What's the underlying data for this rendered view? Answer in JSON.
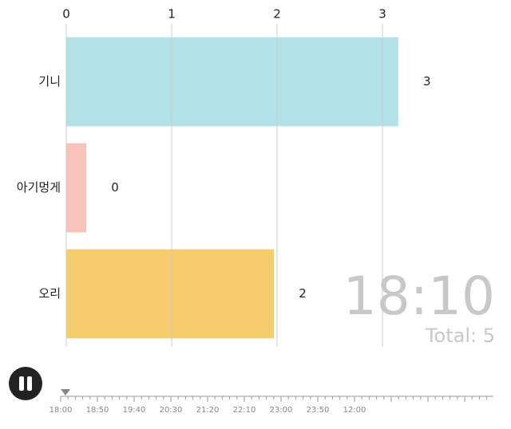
{
  "chart_data": {
    "type": "bar",
    "orientation": "horizontal",
    "categories": [
      "기니",
      "아기멍게",
      "오리"
    ],
    "values": [
      3.15,
      0.19,
      1.97
    ],
    "value_labels": [
      "3",
      "0",
      "2"
    ],
    "colors": [
      "#b3e1e8",
      "#f8c3bb",
      "#f6cd6c"
    ],
    "xlim": [
      0,
      4.07
    ],
    "xticks": [
      0,
      1,
      2,
      3
    ],
    "grid": true
  },
  "overlay": {
    "time": "18:10",
    "total": "Total: 5"
  },
  "timeline": {
    "labels": [
      "18:00",
      "18:50",
      "19:40",
      "20:30",
      "21:20",
      "22:10",
      "23:00",
      "23:50",
      "12:00"
    ]
  }
}
